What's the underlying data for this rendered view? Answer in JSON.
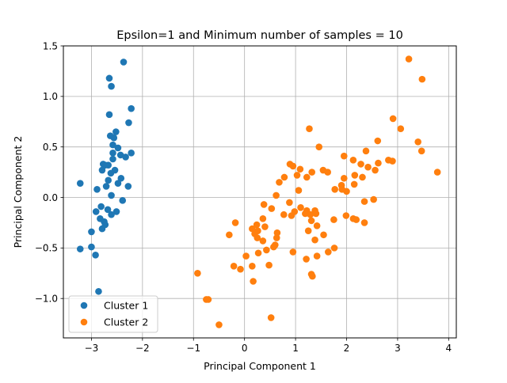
{
  "chart_data": {
    "type": "scatter",
    "title": "Epsilon=1 and Minimum number of samples = 10",
    "xlabel": "Principal Component 1",
    "ylabel": "Principal Component 2",
    "xlim": [
      -3.55,
      4.15
    ],
    "ylim": [
      -1.39,
      1.5
    ],
    "xticks": [
      -3,
      -2,
      -1,
      0,
      1,
      2,
      3,
      4
    ],
    "yticks": [
      -1.0,
      -0.5,
      0.0,
      0.5,
      1.0,
      1.5
    ],
    "xtick_labels": [
      "−3",
      "−2",
      "−1",
      "0",
      "1",
      "2",
      "3",
      "4"
    ],
    "ytick_labels": [
      "−1.0",
      "−0.5",
      "0.0",
      "0.5",
      "1.0",
      "1.5"
    ],
    "grid": true,
    "legend_position": "lower-left",
    "series": [
      {
        "name": "Cluster 1",
        "color": "#1f77b4",
        "points": [
          [
            -2.37,
            1.34
          ],
          [
            -2.65,
            1.18
          ],
          [
            -2.61,
            1.1
          ],
          [
            -2.22,
            0.88
          ],
          [
            -2.65,
            0.82
          ],
          [
            -2.27,
            0.74
          ],
          [
            -2.52,
            0.65
          ],
          [
            -2.63,
            0.61
          ],
          [
            -2.56,
            0.59
          ],
          [
            -2.58,
            0.52
          ],
          [
            -2.48,
            0.49
          ],
          [
            -2.22,
            0.44
          ],
          [
            -2.58,
            0.44
          ],
          [
            -2.43,
            0.42
          ],
          [
            -2.33,
            0.4
          ],
          [
            -2.58,
            0.38
          ],
          [
            -2.77,
            0.33
          ],
          [
            -2.67,
            0.32
          ],
          [
            -2.73,
            0.32
          ],
          [
            -2.79,
            0.27
          ],
          [
            -2.54,
            0.27
          ],
          [
            -2.62,
            0.24
          ],
          [
            -2.42,
            0.19
          ],
          [
            -2.67,
            0.17
          ],
          [
            -2.48,
            0.14
          ],
          [
            -3.22,
            0.14
          ],
          [
            -2.71,
            0.11
          ],
          [
            -2.28,
            0.11
          ],
          [
            -2.89,
            0.08
          ],
          [
            -2.61,
            0.02
          ],
          [
            -2.39,
            -0.03
          ],
          [
            -2.81,
            -0.09
          ],
          [
            -2.68,
            -0.12
          ],
          [
            -2.51,
            -0.14
          ],
          [
            -2.91,
            -0.14
          ],
          [
            -2.61,
            -0.17
          ],
          [
            -2.83,
            -0.21
          ],
          [
            -2.75,
            -0.24
          ],
          [
            -2.73,
            -0.27
          ],
          [
            -2.79,
            -0.31
          ],
          [
            -3.0,
            -0.34
          ],
          [
            -3.22,
            -0.51
          ],
          [
            -3.0,
            -0.49
          ],
          [
            -2.92,
            -0.57
          ],
          [
            -2.86,
            -0.93
          ]
        ]
      },
      {
        "name": "Cluster 2",
        "color": "#ff7f0e",
        "points": [
          [
            3.22,
            1.37
          ],
          [
            3.48,
            1.17
          ],
          [
            2.91,
            0.78
          ],
          [
            3.06,
            0.68
          ],
          [
            1.27,
            0.68
          ],
          [
            2.61,
            0.56
          ],
          [
            3.4,
            0.55
          ],
          [
            1.46,
            0.5
          ],
          [
            1.95,
            0.41
          ],
          [
            2.13,
            0.37
          ],
          [
            2.82,
            0.37
          ],
          [
            2.38,
            0.46
          ],
          [
            3.47,
            0.46
          ],
          [
            2.9,
            0.36
          ],
          [
            2.28,
            0.33
          ],
          [
            2.62,
            0.34
          ],
          [
            0.89,
            0.33
          ],
          [
            0.95,
            0.31
          ],
          [
            2.42,
            0.3
          ],
          [
            1.09,
            0.28
          ],
          [
            1.54,
            0.27
          ],
          [
            3.78,
            0.25
          ],
          [
            1.03,
            0.22
          ],
          [
            1.32,
            0.25
          ],
          [
            1.63,
            0.25
          ],
          [
            2.56,
            0.27
          ],
          [
            2.16,
            0.22
          ],
          [
            1.22,
            0.2
          ],
          [
            2.31,
            0.2
          ],
          [
            0.78,
            0.2
          ],
          [
            1.95,
            0.19
          ],
          [
            0.68,
            0.15
          ],
          [
            2.15,
            0.13
          ],
          [
            1.9,
            0.12
          ],
          [
            1.91,
            0.08
          ],
          [
            1.77,
            0.08
          ],
          [
            1.06,
            0.07
          ],
          [
            2.0,
            0.06
          ],
          [
            0.62,
            0.02
          ],
          [
            2.53,
            -0.02
          ],
          [
            0.88,
            -0.05
          ],
          [
            2.35,
            -0.04
          ],
          [
            0.38,
            -0.07
          ],
          [
            1.1,
            -0.1
          ],
          [
            0.53,
            -0.11
          ],
          [
            1.22,
            -0.13
          ],
          [
            1.38,
            -0.13
          ],
          [
            0.98,
            -0.14
          ],
          [
            0.77,
            -0.17
          ],
          [
            1.19,
            -0.16
          ],
          [
            1.29,
            -0.17
          ],
          [
            1.4,
            -0.16
          ],
          [
            1.99,
            -0.18
          ],
          [
            0.92,
            -0.18
          ],
          [
            0.36,
            -0.21
          ],
          [
            2.13,
            -0.21
          ],
          [
            2.19,
            -0.22
          ],
          [
            1.75,
            -0.22
          ],
          [
            1.31,
            -0.23
          ],
          [
            -0.18,
            -0.25
          ],
          [
            0.24,
            -0.27
          ],
          [
            0.4,
            -0.29
          ],
          [
            2.35,
            -0.25
          ],
          [
            1.42,
            -0.28
          ],
          [
            0.15,
            -0.31
          ],
          [
            0.26,
            -0.33
          ],
          [
            1.25,
            -0.33
          ],
          [
            0.2,
            -0.36
          ],
          [
            0.64,
            -0.35
          ],
          [
            -0.3,
            -0.37
          ],
          [
            1.55,
            -0.37
          ],
          [
            0.63,
            -0.4
          ],
          [
            0.25,
            -0.4
          ],
          [
            1.38,
            -0.42
          ],
          [
            0.36,
            -0.43
          ],
          [
            0.6,
            -0.47
          ],
          [
            0.57,
            -0.49
          ],
          [
            1.76,
            -0.5
          ],
          [
            0.43,
            -0.52
          ],
          [
            0.95,
            -0.54
          ],
          [
            0.27,
            -0.55
          ],
          [
            1.64,
            -0.54
          ],
          [
            0.03,
            -0.58
          ],
          [
            1.42,
            -0.58
          ],
          [
            1.21,
            -0.61
          ],
          [
            0.48,
            -0.67
          ],
          [
            0.15,
            -0.68
          ],
          [
            -0.21,
            -0.68
          ],
          [
            -0.08,
            -0.71
          ],
          [
            1.31,
            -0.76
          ],
          [
            1.33,
            -0.78
          ],
          [
            -0.92,
            -0.75
          ],
          [
            0.17,
            -0.83
          ],
          [
            -0.75,
            -1.01
          ],
          [
            -0.71,
            -1.01
          ],
          [
            0.52,
            -1.19
          ],
          [
            -0.5,
            -1.26
          ]
        ]
      }
    ]
  }
}
